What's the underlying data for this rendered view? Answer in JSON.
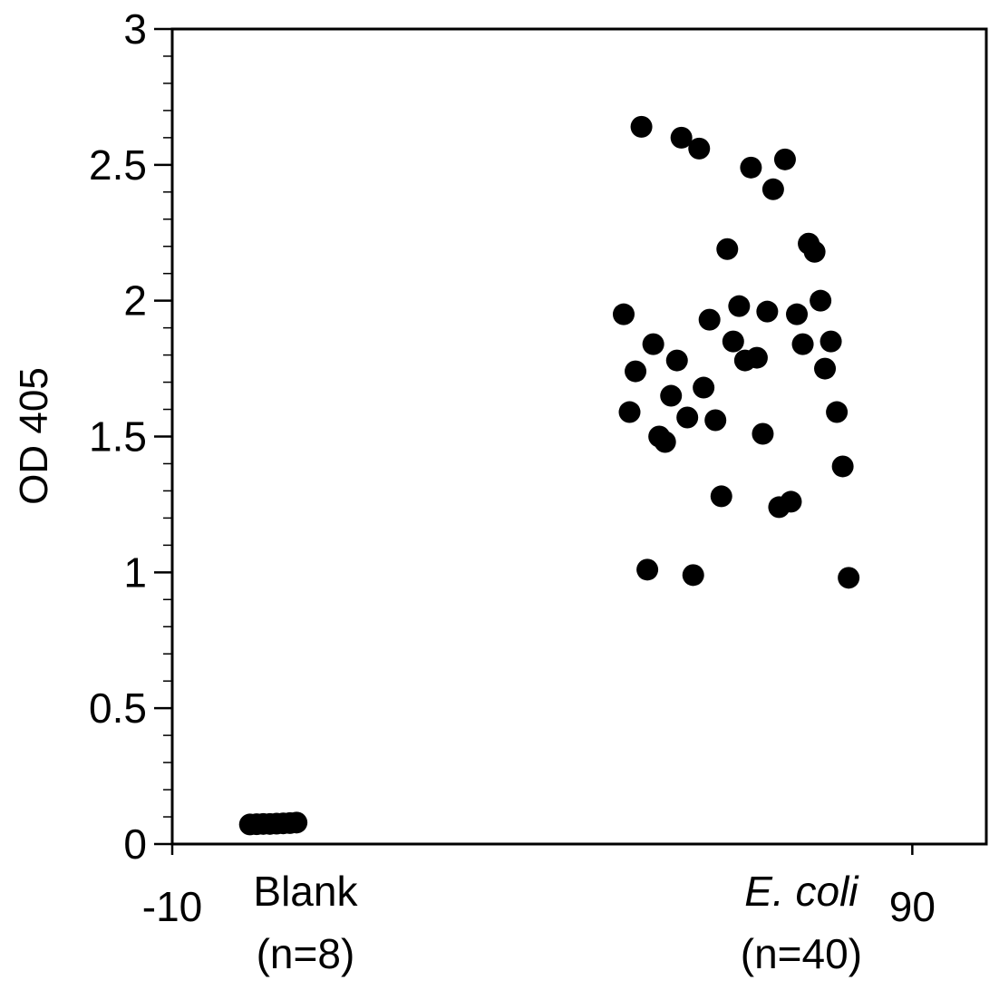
{
  "chart_data": {
    "type": "scatter",
    "title": "",
    "ylabel": "OD 405",
    "xlabel": "",
    "xlim": [
      -10,
      100
    ],
    "ylim": [
      0,
      3
    ],
    "x_ticks": [
      "-10",
      "90"
    ],
    "y_ticks": [
      "0",
      "0.5",
      "1",
      "1.5",
      "2",
      "2.5",
      "3"
    ],
    "y_tick_values": [
      0,
      0.5,
      1,
      1.5,
      2,
      2.5,
      3
    ],
    "y_minor_step": 0.1,
    "grid": false,
    "marker_color": "#000000",
    "groups": [
      {
        "label": "Blank",
        "italic": false,
        "count_label": "(n=8)",
        "center_x": 8
      },
      {
        "label": "E. coli",
        "italic": true,
        "count_label": "(n=40)",
        "center_x": 75
      }
    ],
    "series": [
      {
        "name": "Blank",
        "points": [
          [
            0.5,
            0.072
          ],
          [
            1.4,
            0.073
          ],
          [
            2.3,
            0.074
          ],
          [
            3.2,
            0.074
          ],
          [
            4.1,
            0.075
          ],
          [
            5.0,
            0.076
          ],
          [
            5.9,
            0.077
          ],
          [
            6.8,
            0.079
          ]
        ]
      },
      {
        "name": "E. coli",
        "points": [
          [
            51.0,
            1.95
          ],
          [
            51.8,
            1.59
          ],
          [
            52.6,
            1.74
          ],
          [
            53.4,
            2.64
          ],
          [
            54.2,
            1.01
          ],
          [
            55.0,
            1.84
          ],
          [
            55.8,
            1.5
          ],
          [
            56.6,
            1.48
          ],
          [
            57.4,
            1.65
          ],
          [
            58.2,
            1.78
          ],
          [
            58.8,
            2.6
          ],
          [
            59.6,
            1.57
          ],
          [
            60.4,
            0.99
          ],
          [
            61.2,
            2.56
          ],
          [
            61.8,
            1.68
          ],
          [
            62.6,
            1.93
          ],
          [
            63.4,
            1.56
          ],
          [
            64.2,
            1.28
          ],
          [
            65.0,
            2.19
          ],
          [
            65.8,
            1.85
          ],
          [
            66.6,
            1.98
          ],
          [
            67.4,
            1.78
          ],
          [
            68.2,
            2.49
          ],
          [
            69.0,
            1.79
          ],
          [
            69.8,
            1.51
          ],
          [
            70.4,
            1.96
          ],
          [
            71.2,
            2.41
          ],
          [
            72.0,
            1.24
          ],
          [
            72.8,
            2.52
          ],
          [
            73.6,
            1.26
          ],
          [
            74.4,
            1.95
          ],
          [
            75.2,
            1.84
          ],
          [
            76.0,
            2.21
          ],
          [
            76.8,
            2.18
          ],
          [
            77.6,
            2.0
          ],
          [
            78.2,
            1.75
          ],
          [
            79.0,
            1.85
          ],
          [
            79.8,
            1.59
          ],
          [
            80.6,
            1.39
          ],
          [
            81.4,
            0.98
          ]
        ]
      }
    ]
  }
}
